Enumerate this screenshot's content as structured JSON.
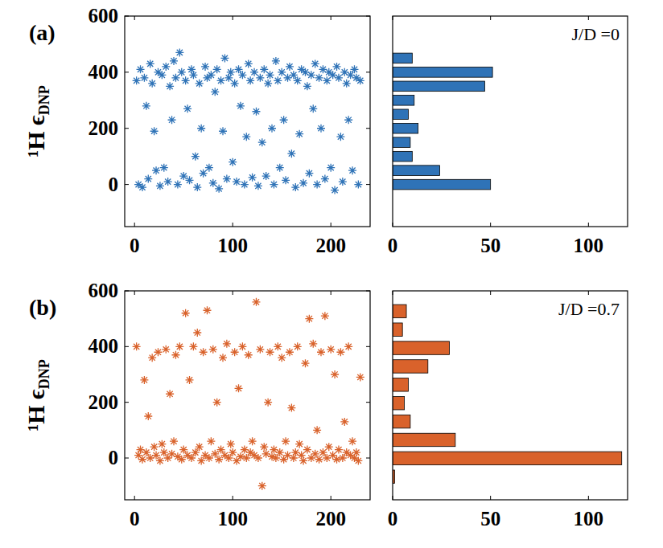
{
  "chart_data": [
    {
      "type": "scatter",
      "panel": "(a)",
      "ylabel": [
        "¹H ϵ",
        "DNP"
      ],
      "color": "#2f73b7",
      "marker": "asterisk",
      "xlim": [
        -10,
        240
      ],
      "xticks": [
        0,
        100,
        200
      ],
      "ylim": [
        -150,
        600
      ],
      "yticks": [
        0,
        200,
        400,
        600
      ],
      "x": [
        2,
        4,
        6,
        8,
        10,
        12,
        14,
        16,
        18,
        20,
        22,
        24,
        26,
        28,
        30,
        32,
        34,
        36,
        38,
        40,
        42,
        44,
        46,
        48,
        50,
        52,
        54,
        56,
        58,
        60,
        62,
        64,
        66,
        68,
        70,
        72,
        74,
        76,
        78,
        80,
        82,
        84,
        86,
        88,
        90,
        92,
        94,
        96,
        98,
        100,
        102,
        104,
        106,
        108,
        110,
        112,
        114,
        116,
        118,
        120,
        122,
        124,
        126,
        128,
        130,
        132,
        134,
        136,
        138,
        140,
        142,
        144,
        146,
        148,
        150,
        152,
        154,
        156,
        158,
        160,
        162,
        164,
        166,
        168,
        170,
        172,
        174,
        176,
        178,
        180,
        182,
        184,
        186,
        188,
        190,
        192,
        194,
        196,
        198,
        200,
        202,
        204,
        206,
        208,
        210,
        212,
        214,
        216,
        218,
        220,
        222,
        224,
        226,
        228,
        230
      ],
      "values": [
        370,
        0,
        410,
        -10,
        380,
        280,
        20,
        430,
        360,
        190,
        50,
        400,
        -5,
        390,
        60,
        420,
        10,
        350,
        230,
        440,
        380,
        0,
        470,
        400,
        30,
        370,
        270,
        15,
        410,
        390,
        100,
        -10,
        360,
        200,
        40,
        420,
        380,
        60,
        390,
        5,
        330,
        410,
        -15,
        370,
        190,
        450,
        20,
        380,
        400,
        80,
        360,
        10,
        410,
        280,
        390,
        0,
        170,
        430,
        370,
        25,
        400,
        260,
        -5,
        380,
        150,
        410,
        30,
        360,
        390,
        200,
        0,
        440,
        370,
        60,
        400,
        230,
        15,
        380,
        420,
        110,
        390,
        -10,
        370,
        180,
        410,
        5,
        400,
        350,
        40,
        390,
        270,
        430,
        0,
        380,
        200,
        410,
        20,
        370,
        400,
        60,
        390,
        -20,
        420,
        380,
        170,
        10,
        400,
        360,
        230,
        390,
        50,
        410,
        380,
        0,
        370
      ]
    },
    {
      "type": "histogram",
      "orientation": "horizontal",
      "annotation": "J/D =0",
      "color": "#2f73b7",
      "tick_labels": "x",
      "xlim": [
        0,
        120
      ],
      "xticks": [
        0,
        50,
        100
      ],
      "ylim": [
        -150,
        600
      ],
      "bins": [
        -25,
        25,
        75,
        125,
        175,
        225,
        275,
        325,
        375,
        425,
        475
      ],
      "values": [
        50,
        24,
        10,
        9,
        13,
        8,
        11,
        47,
        51,
        10
      ]
    },
    {
      "type": "scatter",
      "panel": "(b)",
      "ylabel": [
        "¹H ϵ",
        "DNP"
      ],
      "color": "#d9622b",
      "marker": "asterisk",
      "xlim": [
        -10,
        240
      ],
      "xticks": [
        0,
        100,
        200
      ],
      "ylim": [
        -150,
        600
      ],
      "yticks": [
        0,
        200,
        400,
        600
      ],
      "x": [
        2,
        4,
        6,
        8,
        10,
        12,
        14,
        16,
        18,
        20,
        22,
        24,
        26,
        28,
        30,
        32,
        34,
        36,
        38,
        40,
        42,
        44,
        46,
        48,
        50,
        52,
        54,
        56,
        58,
        60,
        62,
        64,
        66,
        68,
        70,
        72,
        74,
        76,
        78,
        80,
        82,
        84,
        86,
        88,
        90,
        92,
        94,
        96,
        98,
        100,
        102,
        104,
        106,
        108,
        110,
        112,
        114,
        116,
        118,
        120,
        122,
        124,
        126,
        128,
        130,
        132,
        134,
        136,
        138,
        140,
        142,
        144,
        146,
        148,
        150,
        152,
        154,
        156,
        158,
        160,
        162,
        164,
        166,
        168,
        170,
        172,
        174,
        176,
        178,
        180,
        182,
        184,
        186,
        188,
        190,
        192,
        194,
        196,
        198,
        200,
        202,
        204,
        206,
        208,
        210,
        212,
        214,
        216,
        218,
        220,
        222,
        224,
        226,
        228,
        230
      ],
      "values": [
        400,
        10,
        30,
        -5,
        280,
        20,
        150,
        0,
        360,
        40,
        10,
        380,
        -10,
        50,
        20,
        390,
        0,
        230,
        15,
        60,
        370,
        5,
        400,
        -5,
        30,
        520,
        10,
        280,
        0,
        400,
        20,
        450,
        40,
        -10,
        380,
        10,
        530,
        0,
        60,
        390,
        15,
        200,
        -5,
        30,
        360,
        10,
        410,
        0,
        50,
        20,
        380,
        -10,
        250,
        5,
        400,
        30,
        0,
        370,
        20,
        60,
        10,
        560,
        0,
        390,
        -100,
        40,
        15,
        200,
        380,
        5,
        30,
        0,
        400,
        20,
        360,
        -5,
        60,
        10,
        380,
        180,
        0,
        20,
        400,
        50,
        10,
        -10,
        340,
        30,
        500,
        0,
        410,
        15,
        100,
        -5,
        380,
        20,
        510,
        0,
        40,
        390,
        10,
        300,
        -5,
        30,
        380,
        0,
        130,
        20,
        400,
        10,
        60,
        0,
        20,
        -10,
        290
      ]
    },
    {
      "type": "histogram",
      "orientation": "horizontal",
      "annotation": "J/D =0.7",
      "color": "#d9622b",
      "tick_labels": "x",
      "xlim": [
        0,
        120
      ],
      "xticks": [
        0,
        50,
        100
      ],
      "ylim": [
        -150,
        600
      ],
      "bins": [
        -100,
        -34,
        32,
        98,
        164,
        230,
        296,
        362,
        428,
        494,
        560
      ],
      "values": [
        1,
        117,
        32,
        9,
        6,
        8,
        18,
        29,
        5,
        7
      ]
    }
  ]
}
